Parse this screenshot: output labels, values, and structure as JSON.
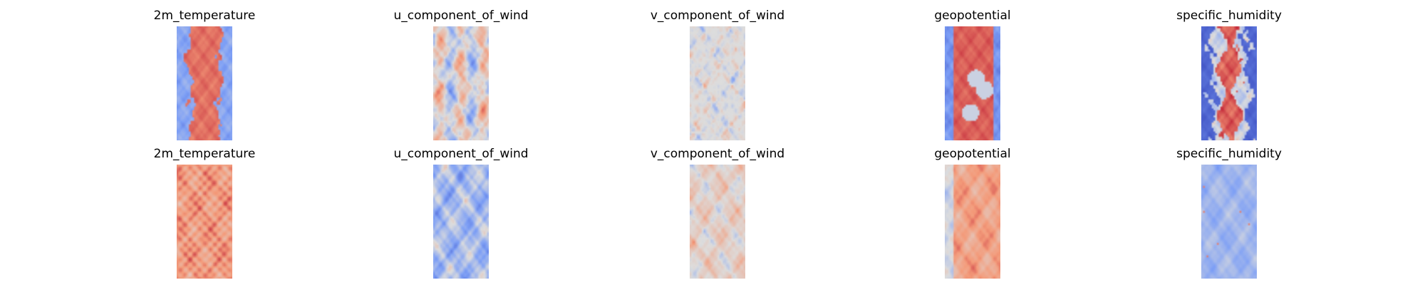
{
  "figure": {
    "rows": [
      {
        "panels": [
          {
            "title": "2m_temperature",
            "pattern": "warm-band"
          },
          {
            "title": "u_component_of_wind",
            "pattern": "stripe-noise"
          },
          {
            "title": "v_component_of_wind",
            "pattern": "neutral-noise"
          },
          {
            "title": "geopotential",
            "pattern": "warm-band-cells"
          },
          {
            "title": "specific_humidity",
            "pattern": "humid-core"
          }
        ]
      },
      {
        "panels": [
          {
            "title": "2m_temperature",
            "pattern": "warm-noise"
          },
          {
            "title": "u_component_of_wind",
            "pattern": "cool-noise"
          },
          {
            "title": "v_component_of_wind",
            "pattern": "mixed-noise"
          },
          {
            "title": "geopotential",
            "pattern": "warm-soft"
          },
          {
            "title": "specific_humidity",
            "pattern": "cool-speckle"
          }
        ]
      }
    ]
  },
  "chart_data": {
    "type": "heatmap",
    "colormap": "coolwarm",
    "axes_visible": false
  }
}
